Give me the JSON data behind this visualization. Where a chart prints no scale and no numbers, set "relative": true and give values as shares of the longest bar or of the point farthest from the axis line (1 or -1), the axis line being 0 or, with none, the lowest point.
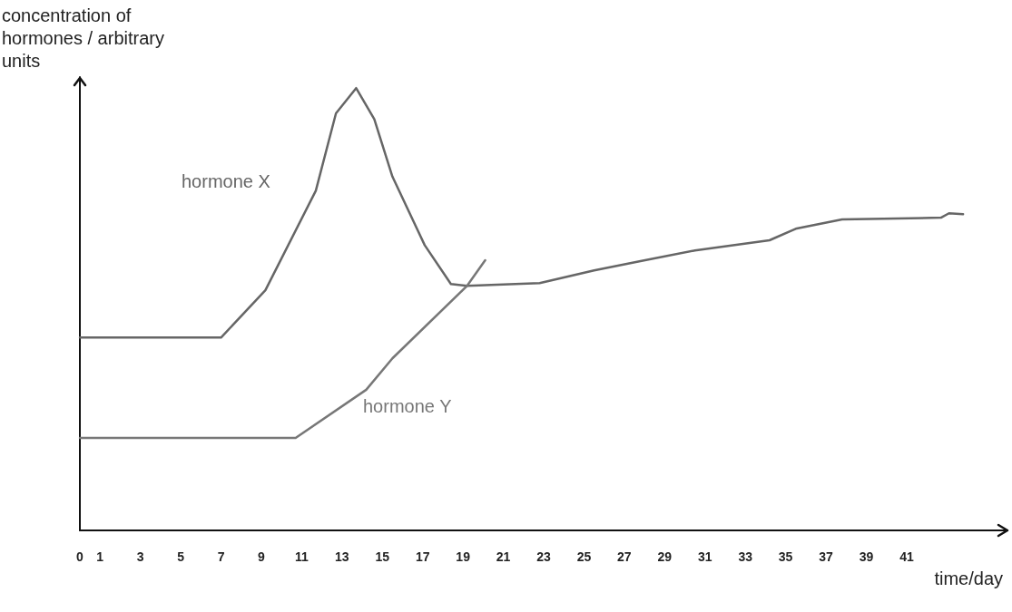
{
  "chart_data": {
    "type": "line",
    "relative": true,
    "ylabel": "concentration of hormones / arbitrary units",
    "xlabel": "time/day",
    "xlim": [
      0,
      46
    ],
    "xticks": [
      0,
      1,
      3,
      5,
      7,
      9,
      11,
      13,
      15,
      17,
      19,
      21,
      23,
      25,
      27,
      29,
      31,
      33,
      35,
      37,
      39,
      41
    ],
    "grid": false,
    "legend": false,
    "marker": "none",
    "line_style": "solid",
    "series": [
      {
        "name": "hormone X",
        "color": "#666666",
        "x": [
          0,
          7,
          9.2,
          11.7,
          12.7,
          13.7,
          14.6,
          15.5,
          17.1,
          18.4,
          19.2,
          22.8,
          25.5,
          27.8,
          30.5,
          34.2,
          35.5,
          37.8,
          42.7,
          43.1,
          43.8
        ],
        "values": [
          0.436,
          0.436,
          0.543,
          0.768,
          0.943,
          1,
          0.93,
          0.8,
          0.645,
          0.557,
          0.553,
          0.559,
          0.588,
          0.609,
          0.633,
          0.656,
          0.682,
          0.703,
          0.707,
          0.717,
          0.715
        ]
      },
      {
        "name": "hormone Y",
        "color": "#777777",
        "x": [
          0,
          10.7,
          14.2,
          15.5,
          19.2,
          20.1
        ],
        "values": [
          0.209,
          0.209,
          0.318,
          0.389,
          0.553,
          0.611
        ]
      }
    ]
  }
}
